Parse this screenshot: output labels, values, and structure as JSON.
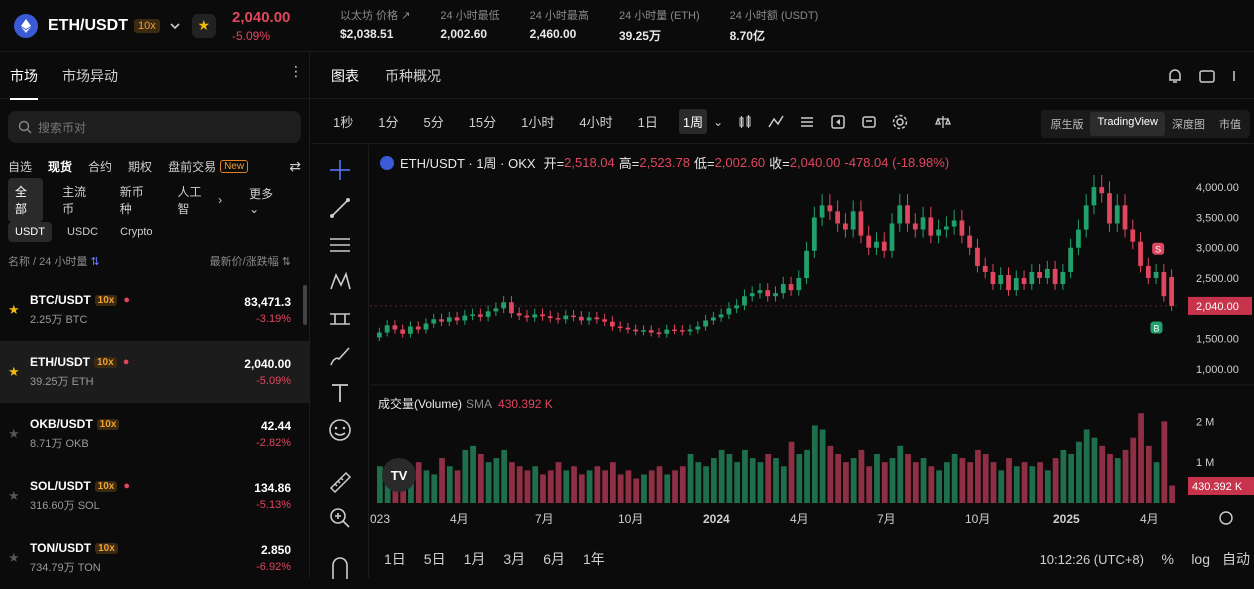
{
  "header": {
    "pair": "ETH/USDT",
    "leverage": "10x",
    "price": "2,040.00",
    "change": "-5.09%",
    "stats": [
      {
        "label": "以太坊 价格",
        "value": "$2,038.51"
      },
      {
        "label": "24 小时最低",
        "value": "2,002.60"
      },
      {
        "label": "24 小时最高",
        "value": "2,460.00"
      },
      {
        "label": "24 小时量 (ETH)",
        "value": "39.25万"
      },
      {
        "label": "24 小时额 (USDT)",
        "value": "8.70亿"
      }
    ]
  },
  "left": {
    "tabs": [
      "市场",
      "市场异动"
    ],
    "search_placeholder": "搜索币对",
    "categories": [
      "自选",
      "现货",
      "合约",
      "期权",
      "盘前交易"
    ],
    "new_badge": "New",
    "filters": [
      "全部",
      "主流币",
      "新币种",
      "人工智"
    ],
    "more": "更多",
    "quotes": [
      "USDT",
      "USDC",
      "Crypto"
    ],
    "col_left": "名称 / 24 小时量",
    "col_right": "最新价/涨跌幅",
    "rows": [
      {
        "symbol": "BTC/USDT",
        "lev": "10x",
        "vol": "2.25万 BTC",
        "price": "83,471.3",
        "change": "-3.19%",
        "fav": true
      },
      {
        "symbol": "ETH/USDT",
        "lev": "10x",
        "vol": "39.25万 ETH",
        "price": "2,040.00",
        "change": "-5.09%",
        "fav": true
      },
      {
        "symbol": "OKB/USDT",
        "lev": "10x",
        "vol": "8.71万 OKB",
        "price": "42.44",
        "change": "-2.82%",
        "fav": false
      },
      {
        "symbol": "SOL/USDT",
        "lev": "10x",
        "vol": "316.60万 SOL",
        "price": "134.86",
        "change": "-5.13%",
        "fav": false
      },
      {
        "symbol": "TON/USDT",
        "lev": "10x",
        "vol": "734.79万 TON",
        "price": "2.850",
        "change": "-6.92%",
        "fav": false
      }
    ]
  },
  "chart_tabs": [
    "图表",
    "币种概况"
  ],
  "intervals": [
    "1秒",
    "1分",
    "5分",
    "15分",
    "1小时",
    "4小时",
    "1日",
    "1周"
  ],
  "views": [
    "原生版",
    "TradingView",
    "深度图",
    "市值"
  ],
  "legend": {
    "title": "ETH/USDT · 1周 · OKX",
    "open_label": "开=",
    "open": "2,518.04",
    "high_label": "高=",
    "high": "2,523.78",
    "low_label": "低=",
    "low": "2,002.60",
    "close_label": "收=",
    "close": "2,040.00",
    "change": "-478.04 (-18.98%)"
  },
  "volume_legend": {
    "label": "成交量(Volume)",
    "sma": "SMA",
    "value": "430.392 K"
  },
  "axis": {
    "price_ticks": [
      "4,000.00",
      "3,500.00",
      "3,000.00",
      "2,500.00",
      "1,500.00",
      "1,000.00"
    ],
    "current_price": "2,040.00",
    "vol_ticks": [
      "2 M",
      "1 M"
    ],
    "current_vol": "430.392 K",
    "x_ticks": [
      "023",
      "4月",
      "7月",
      "10月",
      "2024",
      "4月",
      "7月",
      "10月",
      "2025",
      "4月"
    ]
  },
  "bottom": {
    "ranges": [
      "1日",
      "5日",
      "1月",
      "3月",
      "6月",
      "1年"
    ],
    "time": "10:12:26 (UTC+8)",
    "pct": "%",
    "log": "log",
    "auto": "自动"
  },
  "chart_data": {
    "type": "candlestick",
    "interval": "1周",
    "y_range": [
      900,
      4200
    ],
    "closes": [
      1600,
      1720,
      1650,
      1580,
      1700,
      1650,
      1750,
      1820,
      1780,
      1850,
      1800,
      1880,
      1900,
      1860,
      1950,
      2000,
      2100,
      1920,
      1880,
      1850,
      1900,
      1870,
      1840,
      1820,
      1880,
      1860,
      1800,
      1850,
      1820,
      1780,
      1700,
      1680,
      1650,
      1620,
      1640,
      1600,
      1580,
      1650,
      1640,
      1620,
      1650,
      1700,
      1800,
      1850,
      1900,
      2000,
      2050,
      2200,
      2250,
      2300,
      2200,
      2250,
      2400,
      2300,
      2500,
      2950,
      3500,
      3700,
      3600,
      3400,
      3300,
      3600,
      3200,
      3000,
      3100,
      2950,
      3400,
      3700,
      3400,
      3300,
      3500,
      3200,
      3300,
      3350,
      3450,
      3200,
      3000,
      2700,
      2600,
      2400,
      2550,
      2300,
      2500,
      2400,
      2600,
      2500,
      2650,
      2400,
      2600,
      3000,
      3300,
      3700,
      4000,
      3900,
      3400,
      3700,
      3300,
      3100,
      2700,
      2500,
      2600,
      2200,
      2040
    ],
    "opens": [
      1520,
      1600,
      1720,
      1650,
      1580,
      1700,
      1650,
      1750,
      1820,
      1780,
      1850,
      1800,
      1880,
      1900,
      1860,
      1950,
      2000,
      2100,
      1920,
      1880,
      1850,
      1900,
      1870,
      1840,
      1820,
      1880,
      1860,
      1800,
      1850,
      1820,
      1780,
      1700,
      1680,
      1650,
      1620,
      1640,
      1600,
      1580,
      1650,
      1640,
      1620,
      1650,
      1700,
      1800,
      1850,
      1900,
      2000,
      2050,
      2200,
      2250,
      2300,
      2200,
      2250,
      2400,
      2300,
      2500,
      2950,
      3500,
      3700,
      3600,
      3400,
      3300,
      3600,
      3200,
      3000,
      3100,
      2950,
      3400,
      3700,
      3400,
      3300,
      3500,
      3200,
      3300,
      3350,
      3450,
      3200,
      3000,
      2700,
      2600,
      2400,
      2550,
      2300,
      2500,
      2400,
      2600,
      2500,
      2650,
      2400,
      2600,
      3000,
      3300,
      3700,
      4000,
      3900,
      3400,
      3700,
      3300,
      3100,
      2700,
      2500,
      2600,
      2518
    ],
    "volumes": [
      0.9,
      0.7,
      0.8,
      0.6,
      0.9,
      1.0,
      0.8,
      0.7,
      1.1,
      0.9,
      0.8,
      1.3,
      1.4,
      1.2,
      1.0,
      1.1,
      1.3,
      1.0,
      0.9,
      0.8,
      0.9,
      0.7,
      0.8,
      1.0,
      0.8,
      0.9,
      0.7,
      0.8,
      0.9,
      0.8,
      1.0,
      0.7,
      0.8,
      0.6,
      0.7,
      0.8,
      0.9,
      0.7,
      0.8,
      0.9,
      1.2,
      1.0,
      0.9,
      1.1,
      1.3,
      1.2,
      1.0,
      1.3,
      1.1,
      1.0,
      1.2,
      1.1,
      0.9,
      1.5,
      1.2,
      1.3,
      1.9,
      1.8,
      1.4,
      1.2,
      1.0,
      1.1,
      1.3,
      0.9,
      1.2,
      1.0,
      1.1,
      1.4,
      1.2,
      1.0,
      1.1,
      0.9,
      0.8,
      1.0,
      1.2,
      1.1,
      1.0,
      1.3,
      1.2,
      1.0,
      0.8,
      1.1,
      0.9,
      1.0,
      0.9,
      1.0,
      0.8,
      1.1,
      1.3,
      1.2,
      1.5,
      1.8,
      1.6,
      1.4,
      1.2,
      1.1,
      1.3,
      1.6,
      2.2,
      1.4,
      1.0,
      2.0,
      0.43
    ]
  }
}
